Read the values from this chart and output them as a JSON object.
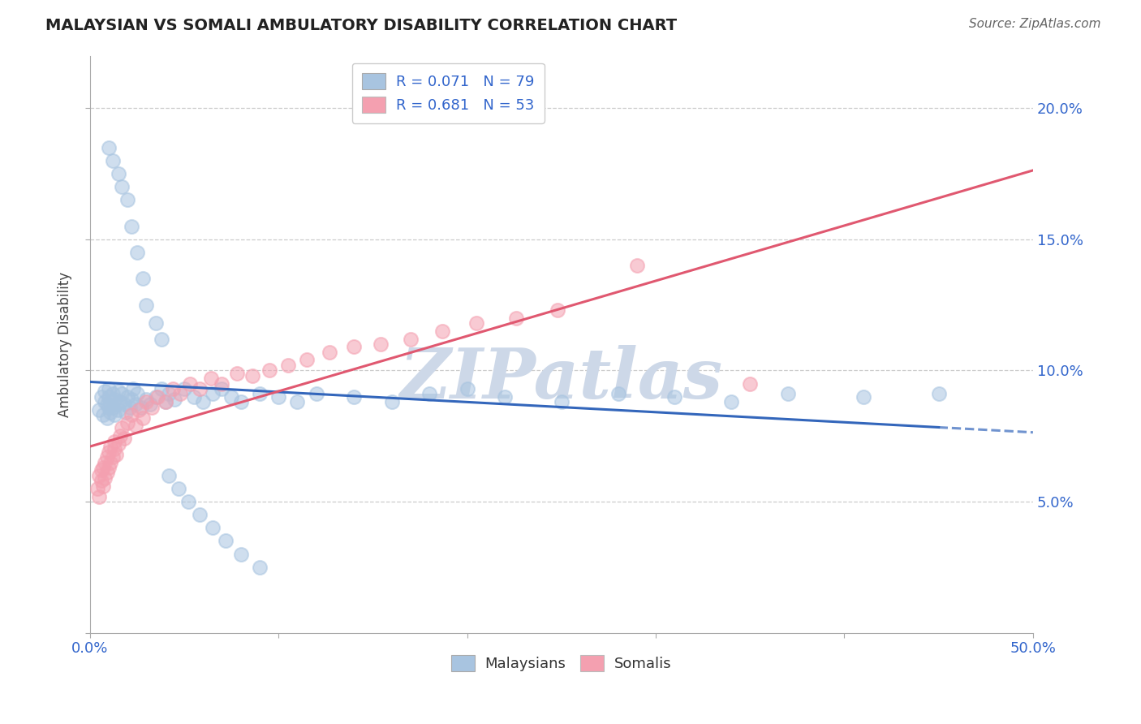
{
  "title": "MALAYSIAN VS SOMALI AMBULATORY DISABILITY CORRELATION CHART",
  "source": "Source: ZipAtlas.com",
  "ylabel": "Ambulatory Disability",
  "xlim": [
    0.0,
    0.5
  ],
  "ylim": [
    0.0,
    0.22
  ],
  "malaysian_R": 0.071,
  "malaysian_N": 79,
  "somali_R": 0.681,
  "somali_N": 53,
  "malaysian_color": "#a8c4e0",
  "somali_color": "#f4a0b0",
  "trend_malaysian_color": "#3366bb",
  "trend_somali_color": "#e05870",
  "watermark_color": "#cdd8e8",
  "malaysian_x": [
    0.005,
    0.006,
    0.007,
    0.008,
    0.008,
    0.009,
    0.009,
    0.01,
    0.01,
    0.01,
    0.011,
    0.011,
    0.012,
    0.012,
    0.013,
    0.013,
    0.014,
    0.015,
    0.015,
    0.016,
    0.017,
    0.018,
    0.019,
    0.02,
    0.021,
    0.022,
    0.023,
    0.024,
    0.025,
    0.027,
    0.03,
    0.032,
    0.035,
    0.038,
    0.04,
    0.042,
    0.045,
    0.05,
    0.055,
    0.06,
    0.065,
    0.07,
    0.075,
    0.08,
    0.09,
    0.1,
    0.11,
    0.12,
    0.14,
    0.16,
    0.18,
    0.2,
    0.22,
    0.25,
    0.28,
    0.31,
    0.34,
    0.37,
    0.41,
    0.45,
    0.01,
    0.012,
    0.015,
    0.017,
    0.02,
    0.022,
    0.025,
    0.028,
    0.03,
    0.035,
    0.038,
    0.042,
    0.047,
    0.052,
    0.058,
    0.065,
    0.072,
    0.08,
    0.09
  ],
  "malaysian_y": [
    0.085,
    0.09,
    0.083,
    0.088,
    0.092,
    0.087,
    0.082,
    0.09,
    0.086,
    0.093,
    0.088,
    0.084,
    0.091,
    0.086,
    0.089,
    0.083,
    0.087,
    0.092,
    0.085,
    0.088,
    0.091,
    0.087,
    0.084,
    0.09,
    0.086,
    0.089,
    0.093,
    0.087,
    0.091,
    0.086,
    0.089,
    0.087,
    0.09,
    0.093,
    0.088,
    0.091,
    0.089,
    0.093,
    0.09,
    0.088,
    0.091,
    0.093,
    0.09,
    0.088,
    0.091,
    0.09,
    0.088,
    0.091,
    0.09,
    0.088,
    0.091,
    0.093,
    0.09,
    0.088,
    0.091,
    0.09,
    0.088,
    0.091,
    0.09,
    0.091,
    0.185,
    0.18,
    0.175,
    0.17,
    0.165,
    0.155,
    0.145,
    0.135,
    0.125,
    0.118,
    0.112,
    0.06,
    0.055,
    0.05,
    0.045,
    0.04,
    0.035,
    0.03,
    0.025
  ],
  "somali_x": [
    0.004,
    0.005,
    0.005,
    0.006,
    0.006,
    0.007,
    0.007,
    0.008,
    0.008,
    0.009,
    0.009,
    0.01,
    0.01,
    0.011,
    0.011,
    0.012,
    0.013,
    0.013,
    0.014,
    0.015,
    0.016,
    0.017,
    0.018,
    0.02,
    0.022,
    0.024,
    0.026,
    0.028,
    0.03,
    0.033,
    0.036,
    0.04,
    0.044,
    0.048,
    0.053,
    0.058,
    0.064,
    0.07,
    0.078,
    0.086,
    0.095,
    0.105,
    0.115,
    0.127,
    0.14,
    0.154,
    0.17,
    0.187,
    0.205,
    0.226,
    0.248,
    0.29,
    0.35
  ],
  "somali_y": [
    0.055,
    0.052,
    0.06,
    0.058,
    0.062,
    0.056,
    0.063,
    0.059,
    0.065,
    0.061,
    0.067,
    0.063,
    0.069,
    0.065,
    0.071,
    0.067,
    0.07,
    0.073,
    0.068,
    0.072,
    0.075,
    0.078,
    0.074,
    0.08,
    0.083,
    0.079,
    0.085,
    0.082,
    0.088,
    0.086,
    0.09,
    0.088,
    0.093,
    0.091,
    0.095,
    0.093,
    0.097,
    0.095,
    0.099,
    0.098,
    0.1,
    0.102,
    0.104,
    0.107,
    0.109,
    0.11,
    0.112,
    0.115,
    0.118,
    0.12,
    0.123,
    0.14,
    0.095
  ],
  "grid_yticks": [
    0.05,
    0.1,
    0.15,
    0.2
  ]
}
